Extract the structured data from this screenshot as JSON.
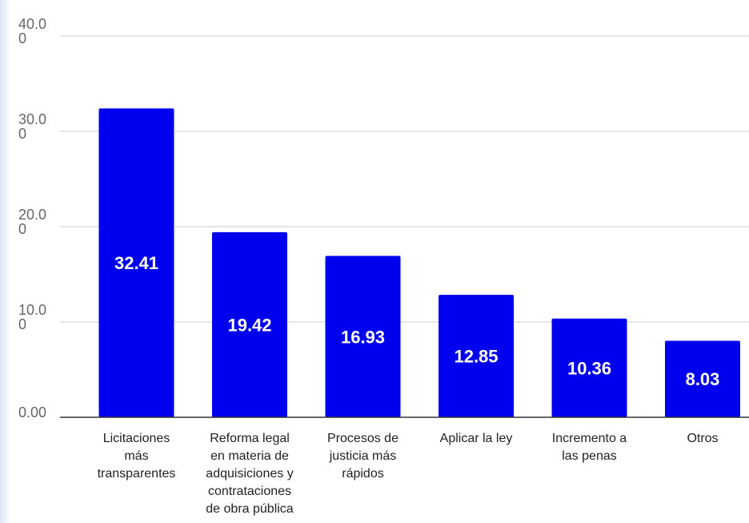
{
  "chart_data": {
    "type": "bar",
    "categories": [
      [
        "Licitaciones",
        "más",
        "transparentes"
      ],
      [
        "Reforma legal",
        "en materia de",
        "adquisiciones y",
        "contrataciones",
        "de obra pública"
      ],
      [
        "Procesos de",
        "justicia más",
        "rápidos"
      ],
      [
        "Aplicar la ley"
      ],
      [
        "Incremento a",
        "las penas"
      ],
      [
        "Otros"
      ]
    ],
    "values": [
      32.41,
      19.42,
      16.93,
      12.85,
      10.36,
      8.03
    ],
    "data_labels": [
      "32.41",
      "19.42",
      "16.93",
      "12.85",
      "10.36",
      "8.03"
    ],
    "y_ticks": [
      {
        "value": 0,
        "lines": [
          "0.00"
        ]
      },
      {
        "value": 10,
        "lines": [
          "10.0",
          "0"
        ]
      },
      {
        "value": 20,
        "lines": [
          "20.0",
          "0"
        ]
      },
      {
        "value": 30,
        "lines": [
          "30.0",
          "0"
        ]
      },
      {
        "value": 40,
        "lines": [
          "40.0",
          "0"
        ]
      }
    ],
    "ylim": [
      0,
      40
    ],
    "bar_color": "#0000ee",
    "grid": true,
    "title": "",
    "xlabel": "",
    "ylabel": ""
  }
}
